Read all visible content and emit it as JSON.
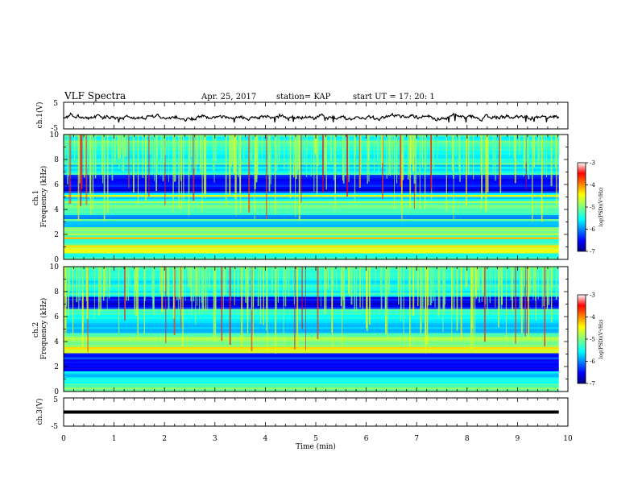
{
  "header": {
    "title": "VLF Spectra",
    "date": "Apr. 25, 2017",
    "station": "station= KAP",
    "start_time": "start  UT =   17: 20: 1"
  },
  "chart_data": [
    {
      "type": "line",
      "name": "ch1-waveform",
      "ylabel": "ch.1(V)",
      "ylim": [
        -5,
        5
      ],
      "ytick_labels": [
        "5",
        "-5"
      ],
      "xlim": [
        0,
        10
      ],
      "description_values": "noisy waveform between about -2 V and 1 V"
    },
    {
      "type": "heatmap",
      "name": "ch1-spectrogram",
      "ylabel": "ch.1\nFrequency (kHz)",
      "ylabel_lines": [
        "ch.1",
        "Frequency (kHz)"
      ],
      "ylim": [
        0,
        10
      ],
      "ytick_labels": [
        "0",
        "2",
        "4",
        "6",
        "8",
        "10"
      ],
      "xlim": [
        0,
        10
      ],
      "data_end_min": 9.82,
      "bands": [
        {
          "f_lo": 0.0,
          "f_hi": 0.5,
          "level": -5.2
        },
        {
          "f_lo": 0.5,
          "f_hi": 1.2,
          "level": -4.6
        },
        {
          "f_lo": 1.2,
          "f_hi": 2.0,
          "level": -5.4
        },
        {
          "f_lo": 2.0,
          "f_hi": 2.6,
          "level": -4.9
        },
        {
          "f_lo": 2.6,
          "f_hi": 3.6,
          "level": -5.9
        },
        {
          "f_lo": 3.6,
          "f_hi": 4.6,
          "level": -5.1
        },
        {
          "f_lo": 4.6,
          "f_hi": 5.4,
          "level": -5.6
        },
        {
          "f_lo": 5.4,
          "f_hi": 6.7,
          "level": -6.5
        },
        {
          "f_lo": 6.7,
          "f_hi": 7.6,
          "level": -5.5
        },
        {
          "f_lo": 7.6,
          "f_hi": 10.0,
          "level": -5.3
        }
      ],
      "colorbar": {
        "label": "log(PSD)(V²/Hz)",
        "range": [
          -7,
          -3
        ],
        "tick_labels": [
          "-3",
          "-4",
          "-5",
          "-6",
          "-7"
        ]
      }
    },
    {
      "type": "heatmap",
      "name": "ch2-spectrogram",
      "ylabel": "ch.2\nFrequency (kHz)",
      "ylabel_lines": [
        "ch.2",
        "Frequency (kHz)"
      ],
      "ylim": [
        0,
        10
      ],
      "ytick_labels": [
        "0",
        "2",
        "4",
        "6",
        "8",
        "10"
      ],
      "xlim": [
        0,
        10
      ],
      "data_end_min": 9.82,
      "bands": [
        {
          "f_lo": 0.0,
          "f_hi": 0.6,
          "level": -5.1
        },
        {
          "f_lo": 0.6,
          "f_hi": 1.6,
          "level": -5.6
        },
        {
          "f_lo": 1.6,
          "f_hi": 3.0,
          "level": -6.4
        },
        {
          "f_lo": 3.0,
          "f_hi": 3.6,
          "level": -4.6
        },
        {
          "f_lo": 3.6,
          "f_hi": 4.6,
          "level": -5.0
        },
        {
          "f_lo": 4.6,
          "f_hi": 5.6,
          "level": -5.7
        },
        {
          "f_lo": 5.6,
          "f_hi": 6.6,
          "level": -5.4
        },
        {
          "f_lo": 6.6,
          "f_hi": 7.6,
          "level": -6.5
        },
        {
          "f_lo": 7.6,
          "f_hi": 10.0,
          "level": -5.4
        }
      ],
      "colorbar": {
        "label": "log(PSD)(V²/Hz)",
        "range": [
          -7,
          -3
        ],
        "tick_labels": [
          "-3",
          "-4",
          "-5",
          "-6",
          "-7"
        ]
      }
    },
    {
      "type": "line",
      "name": "ch3-waveform",
      "ylabel": "ch.3(V)",
      "ylim": [
        -5,
        5
      ],
      "ytick_labels": [
        "5",
        "-5"
      ],
      "xlim": [
        0,
        10
      ],
      "constant_value": 0,
      "xlabel": "Time (min)",
      "xtick_labels": [
        "0",
        "1",
        "2",
        "3",
        "4",
        "5",
        "6",
        "7",
        "8",
        "9",
        "10"
      ]
    }
  ]
}
